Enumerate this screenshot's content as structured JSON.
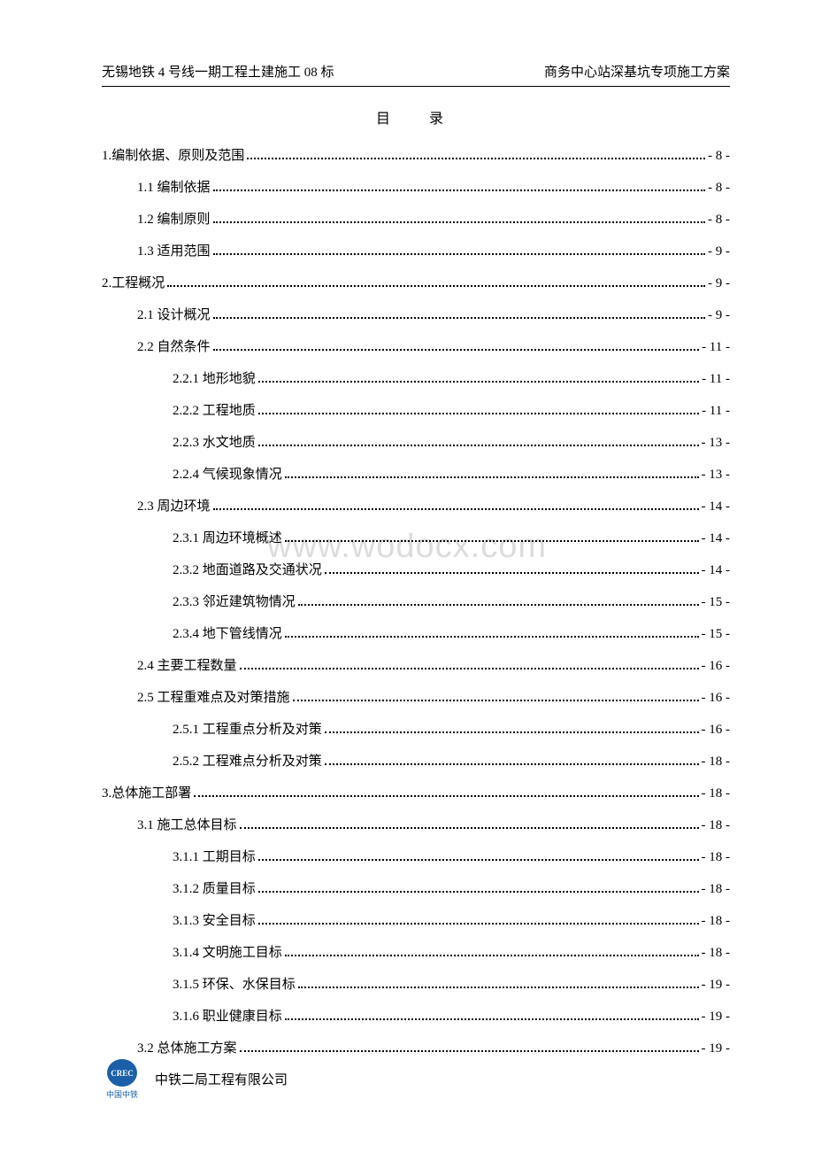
{
  "header": {
    "left": "无锡地铁 4 号线一期工程土建施工 08 标",
    "right": "商务中心站深基坑专项施工方案"
  },
  "title": "目　录",
  "watermark": "www.wodocx.com",
  "footer": {
    "logo_inner": "CREC",
    "logo_label": "中国中铁",
    "company": "中铁二局工程有限公司"
  },
  "toc": [
    {
      "level": 1,
      "label": "1.编制依据、原则及范围",
      "page": "- 8 -"
    },
    {
      "level": 2,
      "label": "1.1 编制依据",
      "page": "- 8 -"
    },
    {
      "level": 2,
      "label": "1.2 编制原则",
      "page": "- 8 -"
    },
    {
      "level": 2,
      "label": "1.3 适用范围",
      "page": "- 9 -"
    },
    {
      "level": 1,
      "label": "2.工程概况",
      "page": "- 9 -"
    },
    {
      "level": 2,
      "label": "2.1 设计概况",
      "page": "- 9 -"
    },
    {
      "level": 2,
      "label": "2.2 自然条件",
      "page": "- 11 -"
    },
    {
      "level": 3,
      "label": "2.2.1 地形地貌",
      "page": "- 11 -"
    },
    {
      "level": 3,
      "label": "2.2.2 工程地质",
      "page": "- 11 -"
    },
    {
      "level": 3,
      "label": "2.2.3 水文地质",
      "page": "- 13 -"
    },
    {
      "level": 3,
      "label": "2.2.4 气候现象情况",
      "page": "- 13 -"
    },
    {
      "level": 2,
      "label": "2.3 周边环境",
      "page": "- 14 -"
    },
    {
      "level": 3,
      "label": "2.3.1 周边环境概述",
      "page": "- 14 -"
    },
    {
      "level": 3,
      "label": "2.3.2 地面道路及交通状况",
      "page": "- 14 -"
    },
    {
      "level": 3,
      "label": "2.3.3 邻近建筑物情况",
      "page": "- 15 -"
    },
    {
      "level": 3,
      "label": "2.3.4 地下管线情况",
      "page": "- 15 -"
    },
    {
      "level": 2,
      "label": "2.4 主要工程数量",
      "page": "- 16 -"
    },
    {
      "level": 2,
      "label": "2.5 工程重难点及对策措施",
      "page": "- 16 -"
    },
    {
      "level": 3,
      "label": "2.5.1 工程重点分析及对策",
      "page": "- 16 -"
    },
    {
      "level": 3,
      "label": "2.5.2 工程难点分析及对策",
      "page": "- 18 -"
    },
    {
      "level": 1,
      "label": "3.总体施工部署",
      "page": "- 18 -"
    },
    {
      "level": 2,
      "label": "3.1 施工总体目标",
      "page": "- 18 -"
    },
    {
      "level": 3,
      "label": "3.1.1 工期目标",
      "page": "- 18 -"
    },
    {
      "level": 3,
      "label": "3.1.2 质量目标",
      "page": "- 18 -"
    },
    {
      "level": 3,
      "label": "3.1.3 安全目标",
      "page": "- 18 -"
    },
    {
      "level": 3,
      "label": "3.1.4 文明施工目标",
      "page": "- 18 -"
    },
    {
      "level": 3,
      "label": "3.1.5 环保、水保目标",
      "page": "- 19 -"
    },
    {
      "level": 3,
      "label": "3.1.6 职业健康目标",
      "page": "- 19 -"
    },
    {
      "level": 2,
      "label": "3.2 总体施工方案",
      "page": "- 19 -"
    }
  ]
}
